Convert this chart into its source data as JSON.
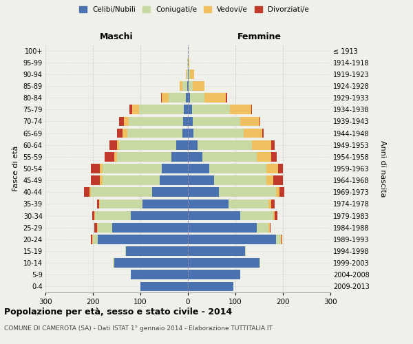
{
  "age_groups": [
    "0-4",
    "5-9",
    "10-14",
    "15-19",
    "20-24",
    "25-29",
    "30-34",
    "35-39",
    "40-44",
    "45-49",
    "50-54",
    "55-59",
    "60-64",
    "65-69",
    "70-74",
    "75-79",
    "80-84",
    "85-89",
    "90-94",
    "95-99",
    "100+"
  ],
  "birth_years": [
    "2009-2013",
    "2004-2008",
    "1999-2003",
    "1994-1998",
    "1989-1993",
    "1984-1988",
    "1979-1983",
    "1974-1978",
    "1969-1973",
    "1964-1968",
    "1959-1963",
    "1954-1958",
    "1949-1953",
    "1944-1948",
    "1939-1943",
    "1934-1938",
    "1929-1933",
    "1924-1928",
    "1919-1923",
    "1914-1918",
    "≤ 1913"
  ],
  "maschi": {
    "celibi": [
      100,
      120,
      155,
      130,
      190,
      160,
      120,
      95,
      75,
      60,
      55,
      35,
      25,
      12,
      10,
      8,
      5,
      2,
      0,
      0,
      0
    ],
    "coniugati": [
      0,
      0,
      3,
      2,
      10,
      30,
      75,
      90,
      130,
      120,
      125,
      115,
      120,
      115,
      115,
      95,
      35,
      10,
      3,
      1,
      0
    ],
    "vedovi": [
      0,
      0,
      0,
      0,
      2,
      2,
      2,
      2,
      2,
      5,
      5,
      5,
      5,
      10,
      10,
      15,
      15,
      5,
      2,
      1,
      0
    ],
    "divorziati": [
      0,
      0,
      0,
      0,
      3,
      5,
      5,
      5,
      12,
      20,
      20,
      20,
      15,
      12,
      10,
      5,
      2,
      0,
      0,
      0,
      0
    ]
  },
  "femmine": {
    "nubili": [
      95,
      110,
      150,
      120,
      185,
      145,
      110,
      85,
      65,
      55,
      45,
      30,
      20,
      12,
      10,
      8,
      5,
      2,
      2,
      0,
      0
    ],
    "coniugate": [
      0,
      0,
      2,
      2,
      10,
      25,
      70,
      85,
      120,
      110,
      120,
      115,
      115,
      105,
      100,
      80,
      30,
      8,
      3,
      1,
      0
    ],
    "vedove": [
      0,
      0,
      0,
      0,
      2,
      2,
      3,
      5,
      8,
      15,
      25,
      30,
      40,
      40,
      40,
      45,
      45,
      25,
      8,
      2,
      0
    ],
    "divorziate": [
      0,
      0,
      0,
      0,
      2,
      2,
      5,
      8,
      10,
      20,
      10,
      12,
      8,
      2,
      2,
      2,
      2,
      0,
      0,
      0,
      0
    ]
  },
  "colors": {
    "celibi": "#4a72b0",
    "coniugati": "#c8d9a3",
    "vedovi": "#f0c060",
    "divorziati": "#c0392b"
  },
  "xlim": 300,
  "title": "Popolazione per età, sesso e stato civile - 2014",
  "subtitle": "COMUNE DI CAMEROTA (SA) - Dati ISTAT 1° gennaio 2014 - Elaborazione TUTTITALIA.IT",
  "ylabel_left": "Fasce di età",
  "ylabel_right": "Anni di nascita",
  "xlabel_left": "Maschi",
  "xlabel_right": "Femmine",
  "bg_color": "#f0f0eb",
  "bar_height": 0.8
}
